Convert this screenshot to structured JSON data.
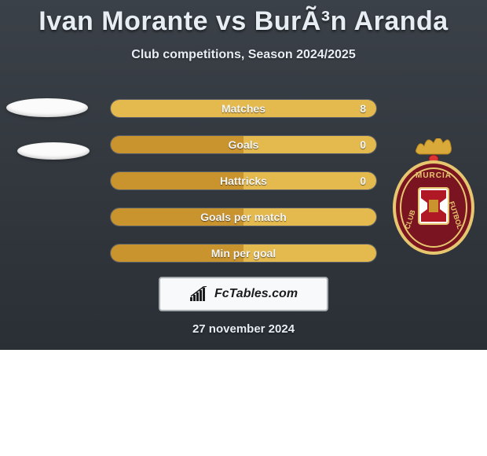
{
  "title": "Ivan Morante vs BurÃ³n Aranda",
  "subtitle": "Club competitions, Season 2024/2025",
  "date": "27 november 2024",
  "attribution_text": "FcTables.com",
  "colors": {
    "card_bg_top": "#3b4148",
    "card_bg_bottom": "#2a2f35",
    "bar_left": "#c9932e",
    "bar_right": "#e4b94e",
    "bar_border": "#5a6069",
    "text": "#e7eef3"
  },
  "bars": [
    {
      "label": "Matches",
      "left_pct": 0,
      "right_pct": 100,
      "value": "8"
    },
    {
      "label": "Goals",
      "left_pct": 50,
      "right_pct": 50,
      "value": "0"
    },
    {
      "label": "Hattricks",
      "left_pct": 50,
      "right_pct": 50,
      "value": "0"
    },
    {
      "label": "Goals per match",
      "left_pct": 50,
      "right_pct": 50,
      "value": ""
    },
    {
      "label": "Min per goal",
      "left_pct": 50,
      "right_pct": 50,
      "value": ""
    }
  ],
  "badge": {
    "text_top": "MURCIA",
    "shield_fill": "#7a1420",
    "shield_stroke": "#e7c670",
    "crown_fill": "#d9a93a"
  }
}
